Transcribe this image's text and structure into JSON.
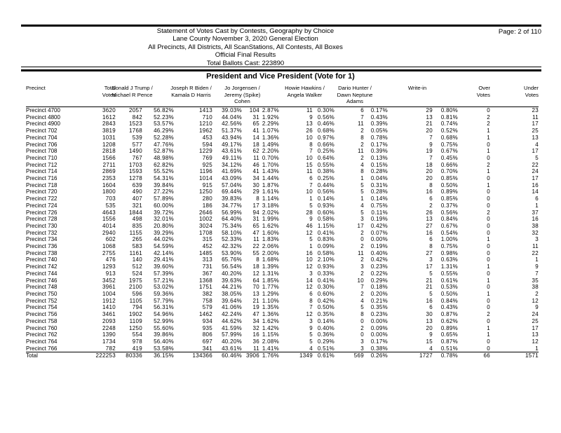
{
  "colors": {
    "ink": "#000000",
    "paper": "#ffffff"
  },
  "report_header": {
    "lines": [
      "Statement of Votes Cast by Contests, Geography by Choice",
      "Lane County November 3, 2020 General Election",
      "All Precincts, All Districts, All ScanStations, All Contests, All Boxes",
      "Official Final Results",
      "Total Ballots Cast: 223890"
    ],
    "page_label": "Page: 2 of 110"
  },
  "contest_title": "President and Vice President (Vote for 1)",
  "table": {
    "headers": {
      "precinct": [
        "Precinct"
      ],
      "total": [
        "Total",
        "Votes"
      ],
      "trump": [
        "Donald J Trump /",
        "Michael R Pence"
      ],
      "biden": [
        "Joseph R Biden /",
        "Kamala D Harris"
      ],
      "jorgensen": [
        "Jo Jorgensen /",
        "Jeremy (Spike)",
        "Cohen"
      ],
      "hawkins": [
        "Howie Hawkins /",
        "Angela Walker"
      ],
      "hunter": [
        "Dario Hunter /",
        "Dawn Neptune",
        "Adams"
      ],
      "write_in": [
        "Write-in"
      ],
      "over": [
        "Over",
        "Votes"
      ],
      "under": [
        "Under",
        "Votes"
      ]
    },
    "column_keys": [
      "precinct",
      "total-votes",
      "trump-votes",
      "trump-pct",
      "biden-votes",
      "biden-pct",
      "jorgensen-votes",
      "jorgensen-pct",
      "hawkins-votes",
      "hawkins-pct",
      "hunter-votes",
      "hunter-pct",
      "writein-votes",
      "writein-pct",
      "over-votes",
      "under-votes"
    ],
    "rows": [
      [
        "Precinct 4700",
        "3620",
        "2057",
        "56.82%",
        "1413",
        "39.03%",
        "104",
        "2.87%",
        "11",
        "0.30%",
        "6",
        "0.17%",
        "29",
        "0.80%",
        "0",
        "23"
      ],
      [
        "Precinct 4800",
        "1612",
        "842",
        "52.23%",
        "710",
        "44.04%",
        "31",
        "1.92%",
        "9",
        "0.56%",
        "7",
        "0.43%",
        "13",
        "0.81%",
        "2",
        "11"
      ],
      [
        "Precinct 4900",
        "2843",
        "1523",
        "53.57%",
        "1210",
        "42.56%",
        "65",
        "2.29%",
        "13",
        "0.46%",
        "11",
        "0.39%",
        "21",
        "0.74%",
        "2",
        "17"
      ],
      [
        "Precinct 702",
        "3819",
        "1768",
        "46.29%",
        "1962",
        "51.37%",
        "41",
        "1.07%",
        "26",
        "0.68%",
        "2",
        "0.05%",
        "20",
        "0.52%",
        "1",
        "25"
      ],
      [
        "Precinct 704",
        "1031",
        "539",
        "52.28%",
        "453",
        "43.94%",
        "14",
        "1.36%",
        "10",
        "0.97%",
        "8",
        "0.78%",
        "7",
        "0.68%",
        "1",
        "13"
      ],
      [
        "Precinct 706",
        "1208",
        "577",
        "47.76%",
        "594",
        "49.17%",
        "18",
        "1.49%",
        "8",
        "0.66%",
        "2",
        "0.17%",
        "9",
        "0.75%",
        "0",
        "4"
      ],
      [
        "Precinct 708",
        "2818",
        "1490",
        "52.87%",
        "1229",
        "43.61%",
        "62",
        "2.20%",
        "7",
        "0.25%",
        "11",
        "0.39%",
        "19",
        "0.67%",
        "1",
        "17"
      ],
      [
        "Precinct 710",
        "1566",
        "767",
        "48.98%",
        "769",
        "49.11%",
        "11",
        "0.70%",
        "10",
        "0.64%",
        "2",
        "0.13%",
        "7",
        "0.45%",
        "0",
        "5"
      ],
      [
        "Precinct 712",
        "2711",
        "1703",
        "62.82%",
        "925",
        "34.12%",
        "46",
        "1.70%",
        "15",
        "0.55%",
        "4",
        "0.15%",
        "18",
        "0.66%",
        "2",
        "22"
      ],
      [
        "Precinct 714",
        "2869",
        "1593",
        "55.52%",
        "1196",
        "41.69%",
        "41",
        "1.43%",
        "11",
        "0.38%",
        "8",
        "0.28%",
        "20",
        "0.70%",
        "1",
        "24"
      ],
      [
        "Precinct 716",
        "2353",
        "1278",
        "54.31%",
        "1014",
        "43.09%",
        "34",
        "1.44%",
        "6",
        "0.25%",
        "1",
        "0.04%",
        "20",
        "0.85%",
        "0",
        "17"
      ],
      [
        "Precinct 718",
        "1604",
        "639",
        "39.84%",
        "915",
        "57.04%",
        "30",
        "1.87%",
        "7",
        "0.44%",
        "5",
        "0.31%",
        "8",
        "0.50%",
        "1",
        "16"
      ],
      [
        "Precinct 720",
        "1800",
        "490",
        "27.22%",
        "1250",
        "69.44%",
        "29",
        "1.61%",
        "10",
        "0.56%",
        "5",
        "0.28%",
        "16",
        "0.89%",
        "0",
        "14"
      ],
      [
        "Precinct 722",
        "703",
        "407",
        "57.89%",
        "280",
        "39.83%",
        "8",
        "1.14%",
        "1",
        "0.14%",
        "1",
        "0.14%",
        "6",
        "0.85%",
        "0",
        "6"
      ],
      [
        "Precinct 724",
        "535",
        "321",
        "60.00%",
        "186",
        "34.77%",
        "17",
        "3.18%",
        "5",
        "0.93%",
        "4",
        "0.75%",
        "2",
        "0.37%",
        "0",
        "1"
      ],
      [
        "Precinct 726",
        "4643",
        "1844",
        "39.72%",
        "2646",
        "56.99%",
        "94",
        "2.02%",
        "28",
        "0.60%",
        "5",
        "0.11%",
        "26",
        "0.56%",
        "2",
        "37"
      ],
      [
        "Precinct 728",
        "1556",
        "498",
        "32.01%",
        "1002",
        "64.40%",
        "31",
        "1.99%",
        "9",
        "0.58%",
        "3",
        "0.19%",
        "13",
        "0.84%",
        "0",
        "16"
      ],
      [
        "Precinct 730",
        "4014",
        "835",
        "20.80%",
        "3024",
        "75.34%",
        "65",
        "1.62%",
        "46",
        "1.15%",
        "17",
        "0.42%",
        "27",
        "0.67%",
        "0",
        "38"
      ],
      [
        "Precinct 732",
        "2940",
        "1155",
        "39.29%",
        "1708",
        "58.10%",
        "47",
        "1.60%",
        "12",
        "0.41%",
        "2",
        "0.07%",
        "16",
        "0.54%",
        "0",
        "32"
      ],
      [
        "Precinct 734",
        "602",
        "265",
        "44.02%",
        "315",
        "52.33%",
        "11",
        "1.83%",
        "5",
        "0.83%",
        "0",
        "0.00%",
        "6",
        "1.00%",
        "1",
        "3"
      ],
      [
        "Precinct 736",
        "1068",
        "583",
        "54.59%",
        "452",
        "42.32%",
        "22",
        "2.06%",
        "1",
        "0.09%",
        "2",
        "0.19%",
        "8",
        "0.75%",
        "0",
        "11"
      ],
      [
        "Precinct 738",
        "2755",
        "1161",
        "42.14%",
        "1485",
        "53.90%",
        "55",
        "2.00%",
        "16",
        "0.58%",
        "11",
        "0.40%",
        "27",
        "0.98%",
        "0",
        "22"
      ],
      [
        "Precinct 740",
        "476",
        "140",
        "29.41%",
        "313",
        "65.76%",
        "8",
        "1.68%",
        "10",
        "2.10%",
        "2",
        "0.42%",
        "3",
        "0.63%",
        "0",
        "1"
      ],
      [
        "Precinct 742",
        "1293",
        "512",
        "39.60%",
        "731",
        "56.54%",
        "18",
        "1.39%",
        "12",
        "0.93%",
        "3",
        "0.23%",
        "17",
        "1.31%",
        "1",
        "9"
      ],
      [
        "Precinct 744",
        "913",
        "524",
        "57.39%",
        "367",
        "40.20%",
        "12",
        "1.31%",
        "3",
        "0.33%",
        "2",
        "0.22%",
        "5",
        "0.55%",
        "0",
        "7"
      ],
      [
        "Precinct 746",
        "3452",
        "1975",
        "57.21%",
        "1368",
        "39.63%",
        "64",
        "1.85%",
        "14",
        "0.41%",
        "10",
        "0.29%",
        "21",
        "0.61%",
        "1",
        "35"
      ],
      [
        "Precinct 748",
        "3961",
        "2100",
        "53.02%",
        "1751",
        "44.21%",
        "70",
        "1.77%",
        "12",
        "0.30%",
        "7",
        "0.18%",
        "21",
        "0.53%",
        "0",
        "38"
      ],
      [
        "Precinct 750",
        "1004",
        "596",
        "59.36%",
        "382",
        "38.05%",
        "13",
        "1.29%",
        "6",
        "0.60%",
        "2",
        "0.20%",
        "5",
        "0.50%",
        "1",
        "2"
      ],
      [
        "Precinct 752",
        "1912",
        "1105",
        "57.79%",
        "758",
        "39.64%",
        "21",
        "1.10%",
        "8",
        "0.42%",
        "4",
        "0.21%",
        "16",
        "0.84%",
        "0",
        "12"
      ],
      [
        "Precinct 754",
        "1410",
        "794",
        "56.31%",
        "579",
        "41.06%",
        "19",
        "1.35%",
        "7",
        "0.50%",
        "5",
        "0.35%",
        "6",
        "0.43%",
        "0",
        "9"
      ],
      [
        "Precinct 756",
        "3461",
        "1902",
        "54.96%",
        "1462",
        "42.24%",
        "47",
        "1.36%",
        "12",
        "0.35%",
        "8",
        "0.23%",
        "30",
        "0.87%",
        "2",
        "24"
      ],
      [
        "Precinct 758",
        "2093",
        "1109",
        "52.99%",
        "934",
        "44.62%",
        "34",
        "1.62%",
        "3",
        "0.14%",
        "0",
        "0.00%",
        "13",
        "0.62%",
        "0",
        "25"
      ],
      [
        "Precinct 760",
        "2248",
        "1250",
        "55.60%",
        "935",
        "41.59%",
        "32",
        "1.42%",
        "9",
        "0.40%",
        "2",
        "0.09%",
        "20",
        "0.89%",
        "1",
        "17"
      ],
      [
        "Precinct 762",
        "1390",
        "554",
        "39.86%",
        "806",
        "57.99%",
        "16",
        "1.15%",
        "5",
        "0.36%",
        "0",
        "0.00%",
        "9",
        "0.65%",
        "1",
        "13"
      ],
      [
        "Precinct 764",
        "1734",
        "978",
        "56.40%",
        "697",
        "40.20%",
        "36",
        "2.08%",
        "5",
        "0.29%",
        "3",
        "0.17%",
        "15",
        "0.87%",
        "0",
        "12"
      ],
      [
        "Precinct 766",
        "782",
        "419",
        "53.58%",
        "341",
        "43.61%",
        "11",
        "1.41%",
        "4",
        "0.51%",
        "3",
        "0.38%",
        "4",
        "0.51%",
        "0",
        "1"
      ]
    ],
    "total_row": [
      "Total",
      "222253",
      "80336",
      "36.15%",
      "134366",
      "60.46%",
      "3906",
      "1.76%",
      "1349",
      "0.61%",
      "569",
      "0.26%",
      "1727",
      "0.78%",
      "66",
      "1571"
    ]
  }
}
